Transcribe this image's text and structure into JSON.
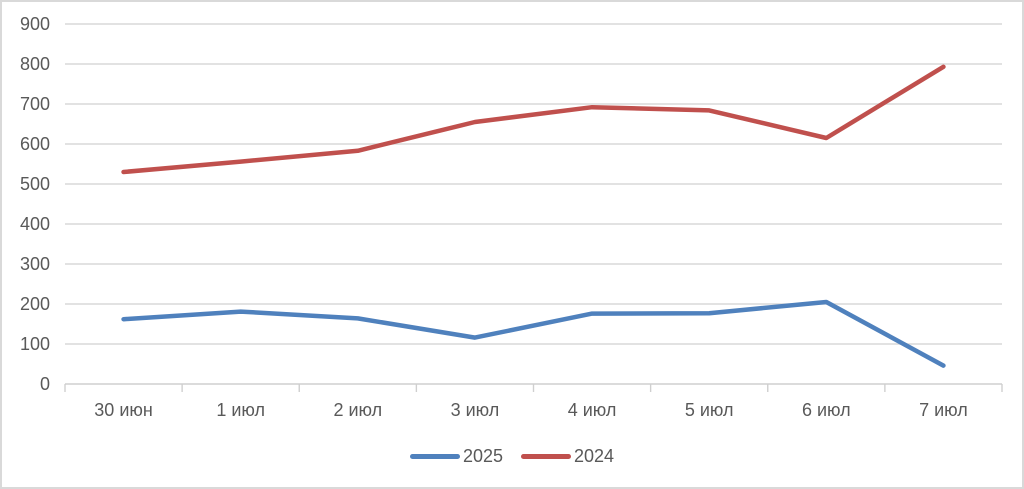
{
  "chart_data": {
    "type": "line",
    "title": "",
    "xlabel": "",
    "ylabel": "",
    "categories": [
      "30 июн",
      "1 июл",
      "2 июл",
      "3 июл",
      "4 июл",
      "5 июл",
      "6 июл",
      "7 июл"
    ],
    "series": [
      {
        "name": "2025",
        "color": "#4F81BD",
        "values": [
          162,
          181,
          164,
          116,
          176,
          177,
          205,
          46
        ]
      },
      {
        "name": "2024",
        "color": "#C0504D",
        "values": [
          530,
          556,
          583,
          655,
          692,
          684,
          615,
          793
        ]
      }
    ],
    "ylim": [
      0,
      900
    ],
    "ytick_step": 100,
    "ytick_labels": [
      "0",
      "100",
      "200",
      "300",
      "400",
      "500",
      "600",
      "700",
      "800",
      "900"
    ],
    "grid": true,
    "legend_position": "bottom-center"
  },
  "colors": {
    "gridline": "#d9d9d9",
    "axis": "#cfcfcf",
    "tick": "#cfcfcf",
    "label_text": "#595959",
    "background": "#ffffff",
    "frame_border": "#d9d9d9"
  }
}
